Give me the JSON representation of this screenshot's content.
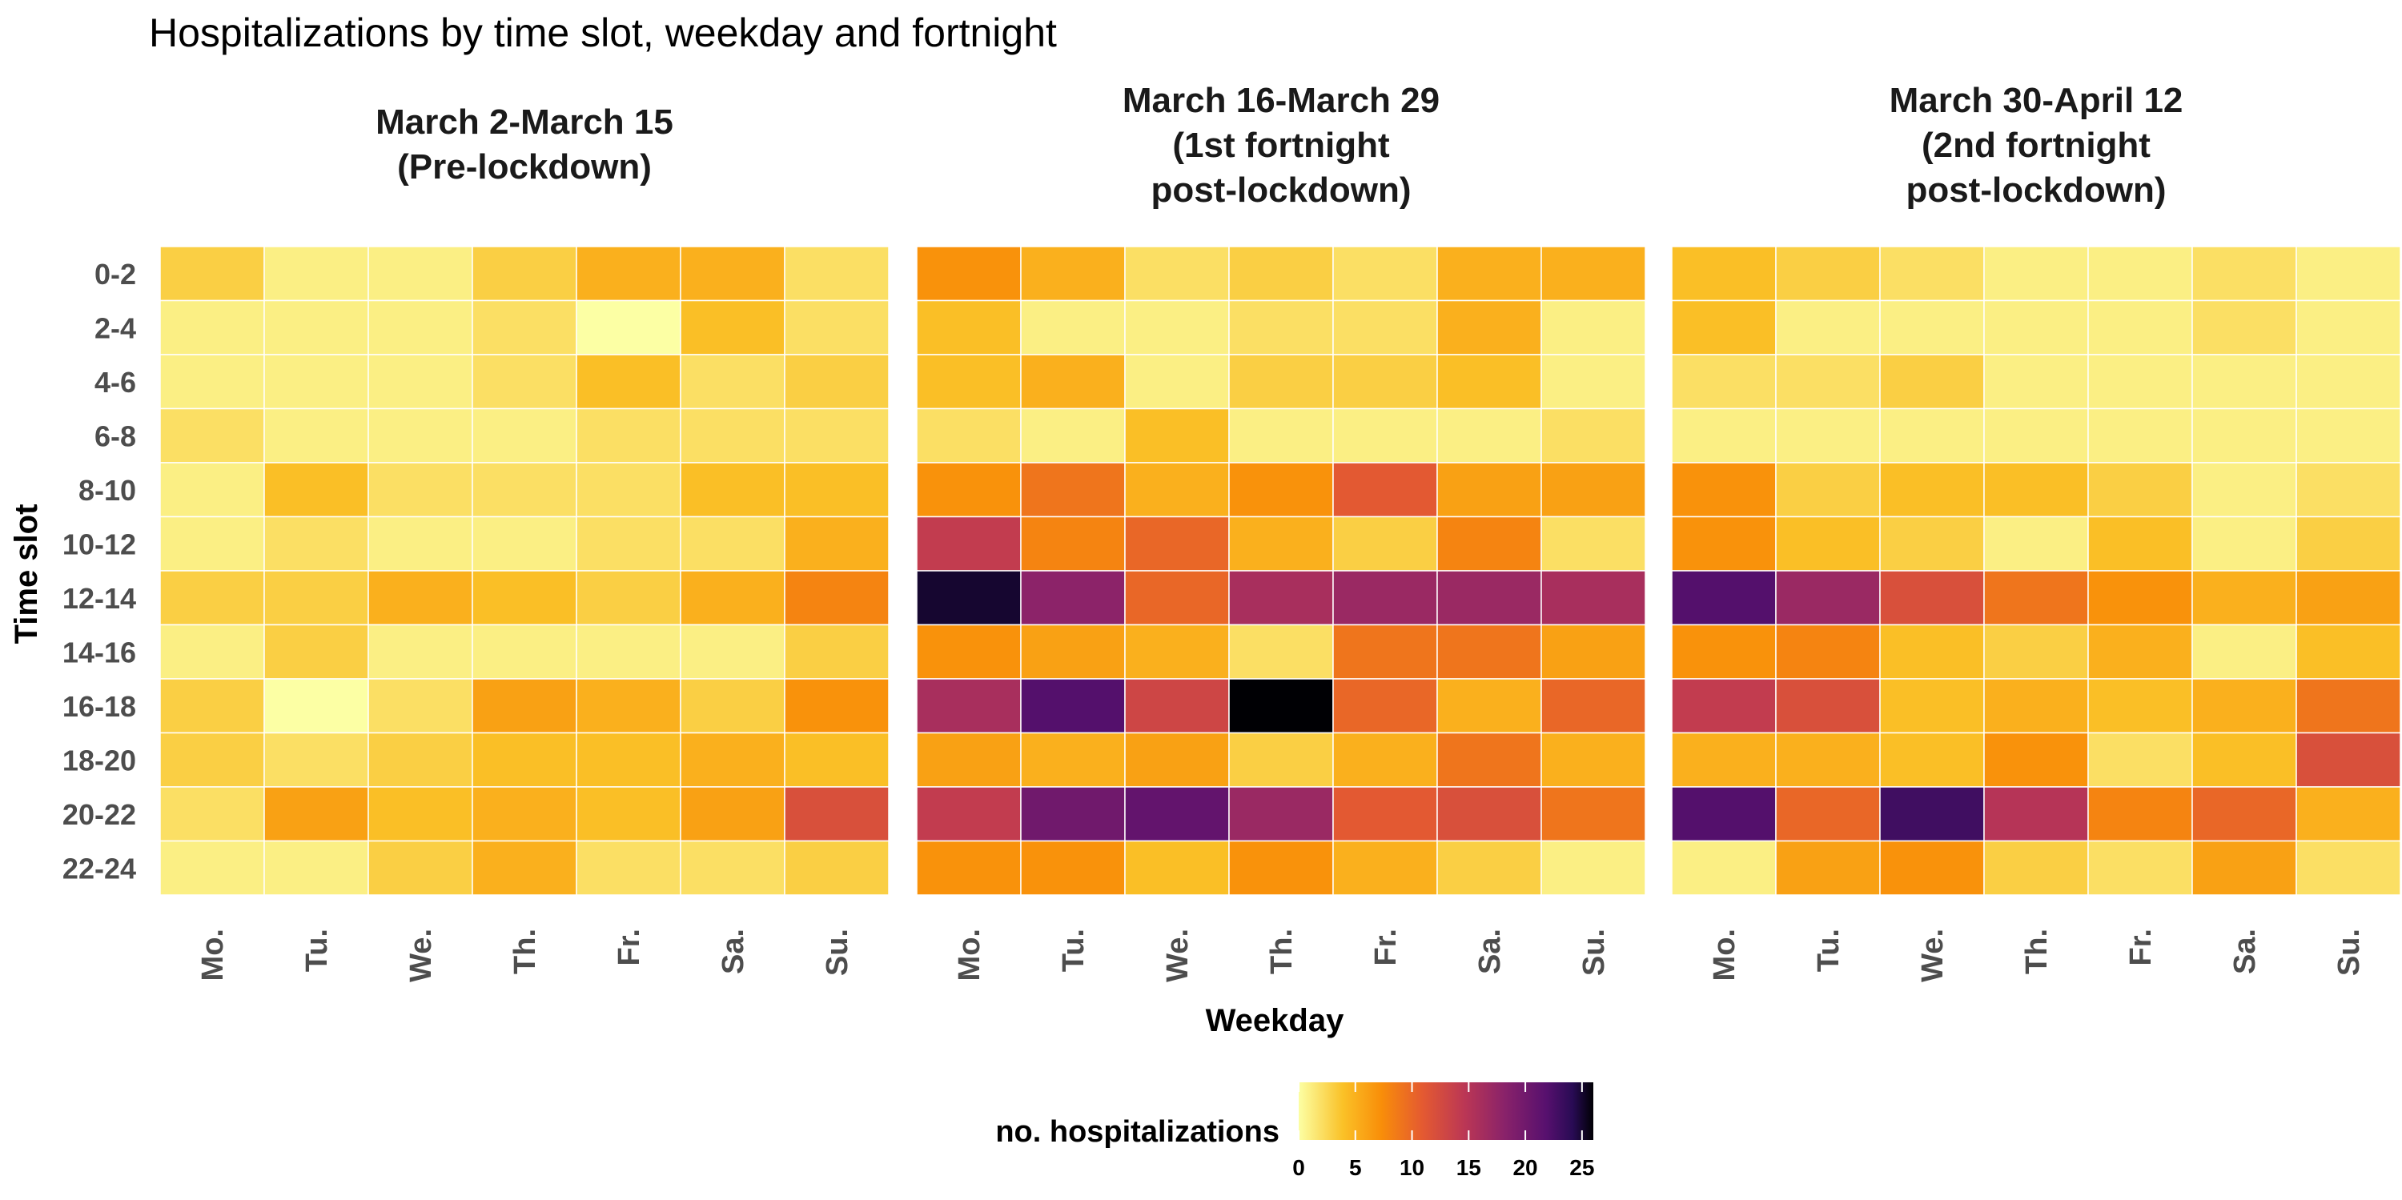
{
  "chart_data": {
    "type": "heatmap",
    "title": "Hospitalizations by time slot, weekday and fortnight",
    "xlabel": "Weekday",
    "ylabel": "Time slot",
    "x_categories": [
      "Mo.",
      "Tu.",
      "We.",
      "Th.",
      "Fr.",
      "Sa.",
      "Su."
    ],
    "y_categories": [
      "0-2",
      "2-4",
      "4-6",
      "6-8",
      "8-10",
      "10-12",
      "12-14",
      "14-16",
      "16-18",
      "18-20",
      "20-22",
      "22-24"
    ],
    "legend": {
      "title": "no. hospitalizations",
      "range": [
        0,
        26
      ],
      "ticks": [
        0,
        5,
        10,
        15,
        20,
        25
      ],
      "tick_labels": [
        "0",
        "5",
        "10",
        "15",
        "20",
        "25"
      ],
      "position": "bottom",
      "palette": "inferno (reversed)"
    },
    "panels": [
      {
        "title_lines": [
          "March 2-March 15",
          "(Pre-lockdown)"
        ],
        "values": [
          [
            3,
            1,
            1,
            3,
            5,
            5,
            2
          ],
          [
            1,
            1,
            1,
            2,
            0,
            4,
            2
          ],
          [
            1,
            1,
            1,
            2,
            4,
            2,
            3
          ],
          [
            2,
            1,
            1,
            1,
            2,
            2,
            2
          ],
          [
            1,
            4,
            2,
            2,
            2,
            4,
            4
          ],
          [
            1,
            2,
            1,
            1,
            2,
            2,
            5
          ],
          [
            3,
            3,
            5,
            4,
            3,
            5,
            8
          ],
          [
            1,
            3,
            1,
            1,
            1,
            1,
            3
          ],
          [
            3,
            0,
            2,
            6,
            5,
            3,
            7
          ],
          [
            3,
            2,
            3,
            4,
            4,
            5,
            4
          ],
          [
            2,
            6,
            4,
            5,
            4,
            6,
            12
          ],
          [
            1,
            1,
            3,
            5,
            2,
            2,
            3
          ]
        ]
      },
      {
        "title_lines": [
          "March 16-March 29",
          "(1st fortnight",
          "post-lockdown)"
        ],
        "values": [
          [
            7,
            5,
            2,
            3,
            2,
            5,
            5
          ],
          [
            4,
            1,
            1,
            2,
            2,
            5,
            1
          ],
          [
            4,
            5,
            1,
            3,
            3,
            4,
            1
          ],
          [
            2,
            1,
            4,
            1,
            1,
            1,
            2
          ],
          [
            7,
            9,
            5,
            7,
            11,
            6,
            6
          ],
          [
            14,
            8,
            10,
            5,
            3,
            8,
            2
          ],
          [
            25,
            18,
            10,
            16,
            17,
            17,
            16
          ],
          [
            7,
            6,
            5,
            2,
            9,
            9,
            6
          ],
          [
            16,
            22,
            13,
            26,
            10,
            5,
            10
          ],
          [
            6,
            5,
            6,
            3,
            5,
            9,
            5
          ],
          [
            14,
            20,
            21,
            17,
            11,
            12,
            9
          ],
          [
            7,
            7,
            4,
            7,
            5,
            3,
            1
          ]
        ]
      },
      {
        "title_lines": [
          "March 30-April 12",
          "(2nd fortnight",
          "post-lockdown)"
        ],
        "values": [
          [
            4,
            3,
            2,
            1,
            1,
            2,
            1
          ],
          [
            4,
            1,
            1,
            1,
            1,
            2,
            1
          ],
          [
            2,
            2,
            3,
            1,
            1,
            1,
            1
          ],
          [
            1,
            1,
            1,
            1,
            1,
            1,
            1
          ],
          [
            7,
            3,
            4,
            4,
            3,
            1,
            2
          ],
          [
            7,
            4,
            3,
            1,
            4,
            1,
            3
          ],
          [
            22,
            17,
            12,
            9,
            7,
            5,
            6
          ],
          [
            7,
            8,
            4,
            3,
            5,
            1,
            4
          ],
          [
            14,
            12,
            4,
            5,
            4,
            5,
            9
          ],
          [
            5,
            5,
            4,
            7,
            2,
            4,
            12
          ],
          [
            22,
            10,
            23,
            15,
            8,
            10,
            5
          ],
          [
            1,
            6,
            7,
            3,
            2,
            6,
            2
          ]
        ]
      }
    ]
  }
}
